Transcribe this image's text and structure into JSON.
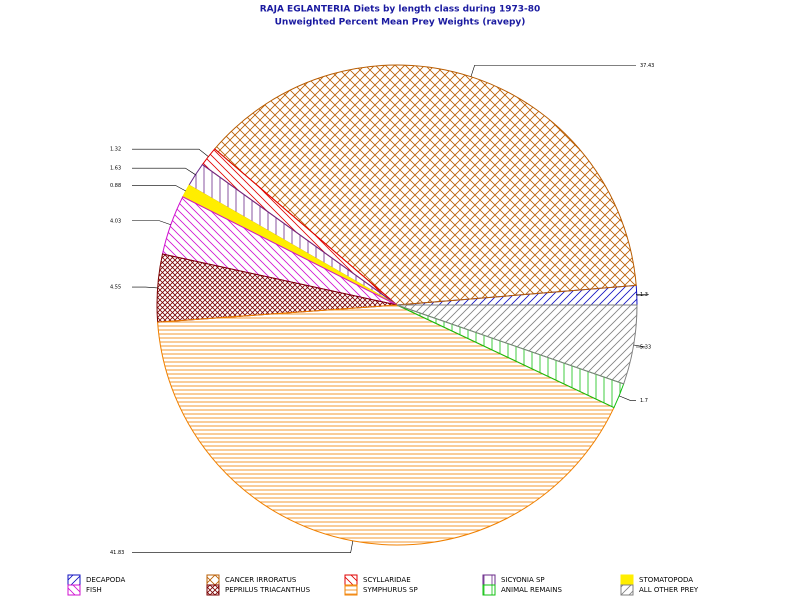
{
  "chart_data": {
    "type": "pie",
    "title": "RAJA EGLANTERIA Diets by length class during 1973-80",
    "subtitle": "Unweighted Percent Mean Prey Weights (ravepy)",
    "categories": [
      "DECAPODA",
      "CANCER IRRORATUS",
      "SCYLLARIDAE",
      "SICYONIA SP",
      "STOMATOPODA",
      "FISH",
      "PEPRILUS TRIACANTHUS",
      "SYMPHURUS SP",
      "ANIMAL REMAINS",
      "ALL OTHER PREY"
    ],
    "values": [
      1.3,
      37.43,
      1.32,
      1.63,
      0.88,
      4.03,
      4.55,
      41.83,
      1.7,
      5.33
    ],
    "colors": [
      "#1010c0",
      "#b85c00",
      "#e00000",
      "#6a2a8a",
      "#ffee00",
      "#d010d0",
      "#7a0000",
      "#f08000",
      "#10c010",
      "#808080"
    ],
    "patterns": [
      "diag-up",
      "cross",
      "diag-down",
      "vertical",
      "solid",
      "diag-down",
      "dense-cross",
      "horizontal",
      "vertical",
      "diag-up"
    ]
  }
}
